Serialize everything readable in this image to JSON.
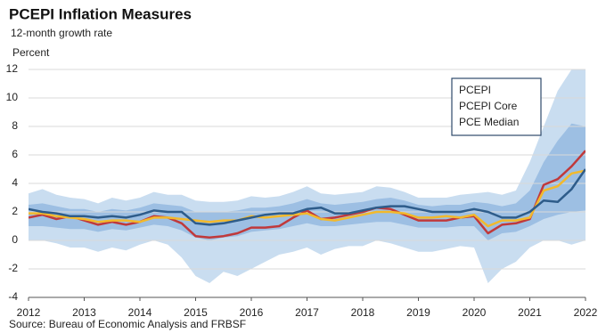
{
  "chart_data": {
    "type": "line",
    "title": "PCEPI Inflation Measures",
    "subtitle": "12-month growth rate",
    "ylabel": "Percent",
    "source": "Source: Bureau of Economic Analysis and FRBSF",
    "x": [
      2012,
      2012.25,
      2012.5,
      2012.75,
      2013,
      2013.25,
      2013.5,
      2013.75,
      2014,
      2014.25,
      2014.5,
      2014.75,
      2015,
      2015.25,
      2015.5,
      2015.75,
      2016,
      2016.25,
      2016.5,
      2016.75,
      2017,
      2017.25,
      2017.5,
      2017.75,
      2018,
      2018.25,
      2018.5,
      2018.75,
      2019,
      2019.25,
      2019.5,
      2019.75,
      2020,
      2020.25,
      2020.5,
      2020.75,
      2021,
      2021.25,
      2021.5,
      2021.75,
      2022
    ],
    "xlim": [
      2012,
      2022
    ],
    "xticks": [
      2012,
      2013,
      2014,
      2015,
      2016,
      2017,
      2018,
      2019,
      2020,
      2021,
      2022
    ],
    "ylim": [
      -4,
      12
    ],
    "yticks": [
      -4,
      -2,
      0,
      2,
      4,
      6,
      8,
      10,
      12
    ],
    "grid": true,
    "legend": "upper right",
    "bands": [
      {
        "color": "#c9ddf0",
        "upper": [
          3.3,
          3.6,
          3.2,
          3.0,
          2.9,
          2.6,
          3.0,
          2.8,
          3.0,
          3.4,
          3.2,
          3.2,
          2.8,
          2.7,
          2.7,
          2.8,
          3.1,
          3.0,
          3.1,
          3.4,
          3.8,
          3.3,
          3.2,
          3.3,
          3.4,
          3.8,
          3.7,
          3.4,
          3.0,
          3.0,
          3.0,
          3.2,
          3.3,
          3.4,
          3.2,
          3.5,
          5.5,
          8.0,
          10.5,
          12,
          12
        ],
        "lower": [
          0.0,
          0.0,
          -0.2,
          -0.5,
          -0.5,
          -0.8,
          -0.5,
          -0.7,
          -0.3,
          0.0,
          -0.3,
          -1.2,
          -2.5,
          -3.0,
          -2.2,
          -2.5,
          -2.0,
          -1.5,
          -1.0,
          -0.8,
          -0.5,
          -1.0,
          -0.6,
          -0.4,
          -0.4,
          0.0,
          -0.2,
          -0.5,
          -0.8,
          -0.8,
          -0.6,
          -0.4,
          -0.5,
          -3.0,
          -2.0,
          -1.5,
          -0.5,
          0.0,
          0.0,
          -0.3,
          0.0
        ]
      },
      {
        "color": "#9dbfe3",
        "upper": [
          2.5,
          2.6,
          2.4,
          2.2,
          2.2,
          2.0,
          2.2,
          2.1,
          2.3,
          2.6,
          2.5,
          2.4,
          2.0,
          2.0,
          2.0,
          2.1,
          2.3,
          2.3,
          2.4,
          2.6,
          2.9,
          2.6,
          2.5,
          2.6,
          2.7,
          2.9,
          3.0,
          2.8,
          2.5,
          2.4,
          2.5,
          2.5,
          2.7,
          2.6,
          2.4,
          2.6,
          3.5,
          5.5,
          7.0,
          8.2,
          8.0
        ],
        "lower": [
          1.0,
          1.0,
          0.9,
          0.8,
          0.8,
          0.6,
          0.8,
          0.7,
          0.9,
          1.1,
          1.0,
          0.7,
          0.2,
          0.0,
          0.2,
          0.3,
          0.6,
          0.7,
          0.8,
          1.0,
          1.2,
          1.0,
          1.0,
          1.1,
          1.2,
          1.3,
          1.3,
          1.1,
          0.9,
          0.9,
          0.9,
          1.0,
          1.0,
          0.0,
          0.5,
          0.6,
          1.0,
          1.5,
          1.8,
          2.0,
          2.1
        ]
      }
    ],
    "series": [
      {
        "name": "PCEPI",
        "color": "#c0393b",
        "values": [
          1.6,
          1.8,
          1.5,
          1.7,
          1.4,
          1.1,
          1.3,
          1.1,
          1.3,
          1.7,
          1.6,
          1.2,
          0.3,
          0.2,
          0.3,
          0.5,
          0.9,
          0.9,
          1.0,
          1.6,
          2.1,
          1.5,
          1.6,
          1.8,
          2.0,
          2.3,
          2.2,
          1.8,
          1.4,
          1.4,
          1.4,
          1.6,
          1.7,
          0.5,
          1.1,
          1.2,
          1.5,
          3.9,
          4.3,
          5.2,
          6.3
        ]
      },
      {
        "name": "PCEPI Core",
        "color": "#f2b92c",
        "values": [
          1.9,
          1.9,
          1.7,
          1.6,
          1.5,
          1.3,
          1.4,
          1.4,
          1.3,
          1.6,
          1.6,
          1.5,
          1.4,
          1.3,
          1.4,
          1.4,
          1.7,
          1.6,
          1.7,
          1.8,
          1.9,
          1.5,
          1.4,
          1.6,
          1.8,
          2.0,
          2.0,
          1.9,
          1.6,
          1.6,
          1.7,
          1.6,
          1.8,
          1.0,
          1.4,
          1.4,
          1.6,
          3.5,
          3.8,
          4.7,
          4.9
        ]
      },
      {
        "name": "PCE Median",
        "color": "#2e5c8a",
        "values": [
          2.2,
          2.0,
          1.9,
          1.7,
          1.7,
          1.6,
          1.7,
          1.6,
          1.8,
          2.1,
          2.0,
          2.0,
          1.2,
          1.1,
          1.2,
          1.4,
          1.6,
          1.8,
          1.9,
          1.9,
          2.2,
          2.3,
          1.9,
          1.9,
          2.1,
          2.3,
          2.4,
          2.4,
          2.2,
          2.0,
          2.0,
          2.0,
          2.2,
          2.0,
          1.6,
          1.6,
          2.0,
          2.8,
          2.7,
          3.6,
          5.0
        ]
      }
    ]
  }
}
